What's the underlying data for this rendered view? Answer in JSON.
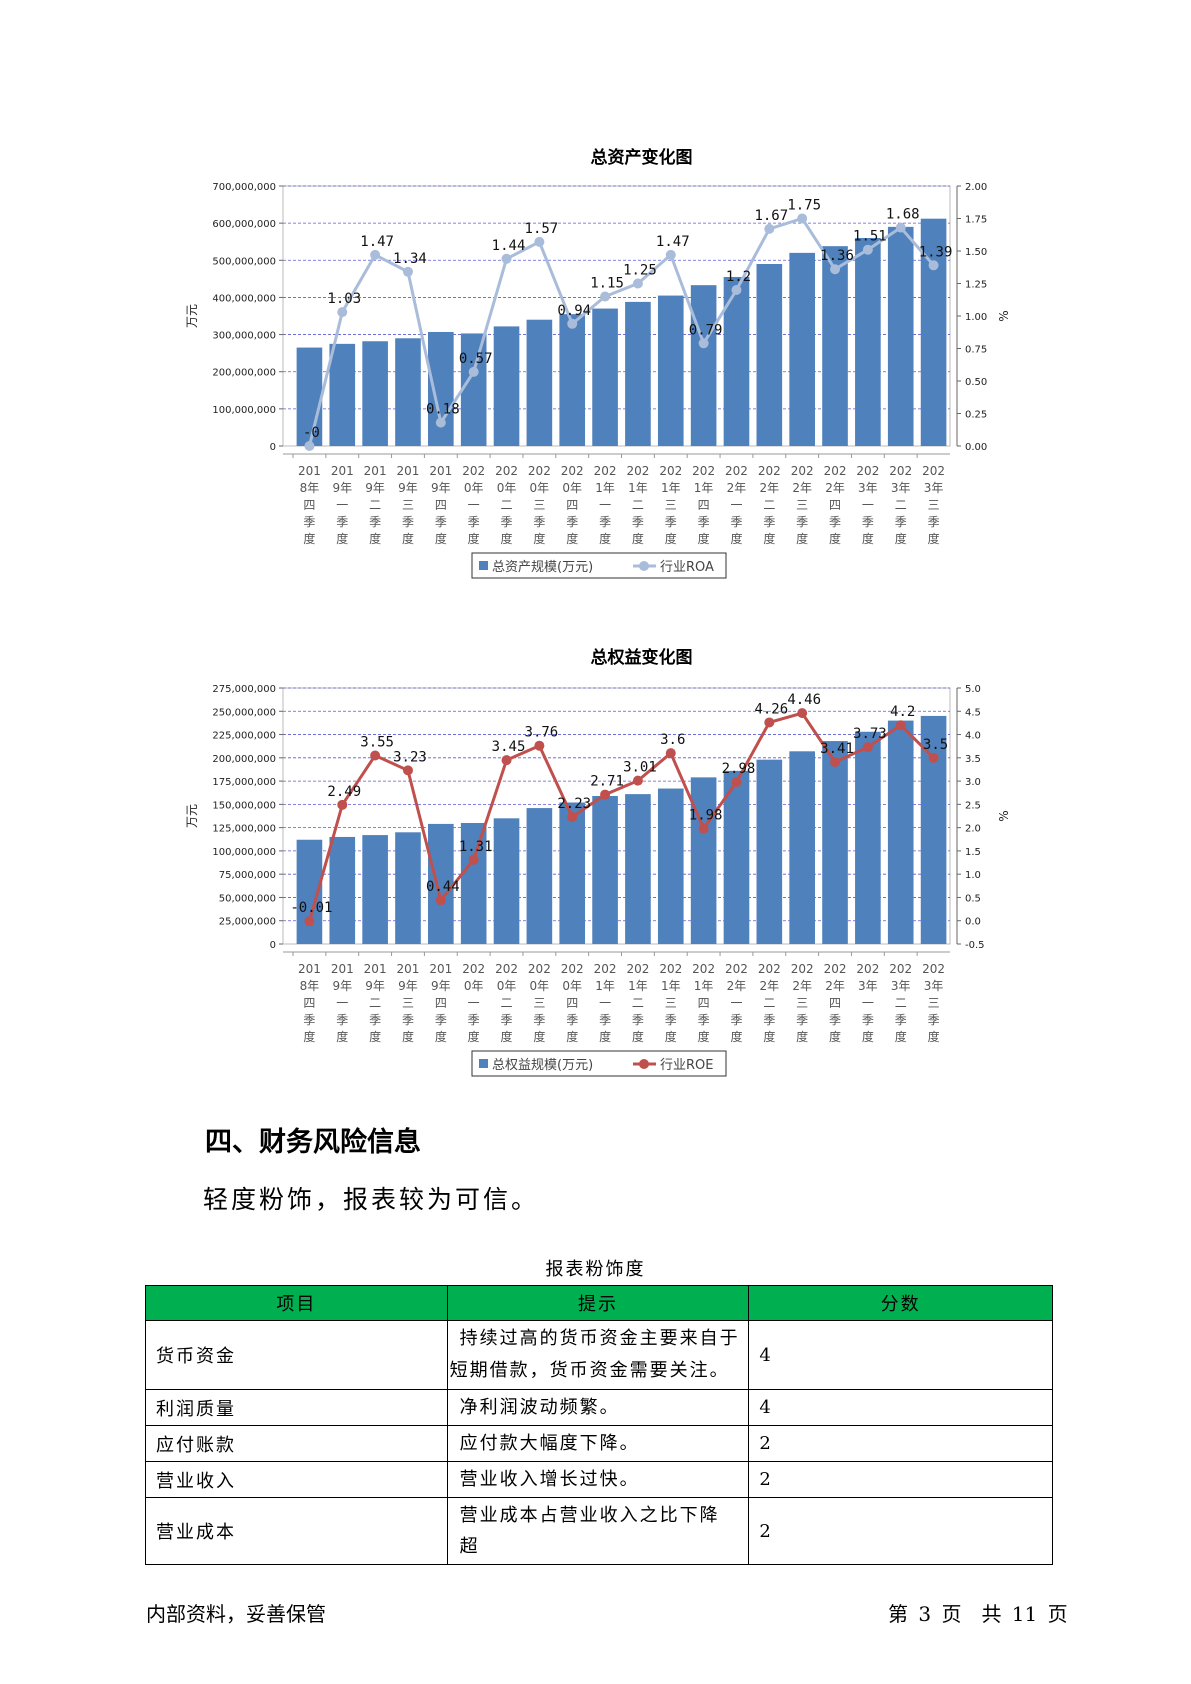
{
  "chart_data": [
    {
      "type": "bar",
      "title": "总资产变化图",
      "ylabel": "万元",
      "y2label": "%",
      "categories": [
        "2018年四季度",
        "2019年一季度",
        "2019年二季度",
        "2019年三季度",
        "2019年四季度",
        "2020年一季度",
        "2020年二季度",
        "2020年三季度",
        "2020年四季度",
        "2021年一季度",
        "2021年二季度",
        "2021年三季度",
        "2021年四季度",
        "2022年一季度",
        "2022年二季度",
        "2022年三季度",
        "2022年四季度",
        "2023年一季度",
        "2023年二季度",
        "2023年三季度"
      ],
      "ylim": [
        0,
        700000000
      ],
      "y_ticks": [
        "700,000,000",
        "600,000,000",
        "500,000,000",
        "400,000,000",
        "300,000,000",
        "200,000,000",
        "100,000,000",
        "0"
      ],
      "y2lim": [
        0,
        2.0
      ],
      "y2_ticks": [
        "2.00",
        "1.75",
        "1.50",
        "1.25",
        "1.00",
        "0.75",
        "0.50",
        "0.25",
        "0.00"
      ],
      "series": [
        {
          "name": "总资产规模(万元)",
          "type": "bar",
          "color": "#4f81bd",
          "values": [
            265000000,
            275000000,
            282000000,
            290000000,
            307000000,
            303000000,
            322000000,
            340000000,
            355000000,
            370000000,
            388000000,
            405000000,
            433000000,
            455000000,
            490000000,
            520000000,
            538000000,
            560000000,
            590000000,
            612000000
          ]
        },
        {
          "name": "行业ROA",
          "type": "line",
          "color": "#a9bcda",
          "values": [
            0,
            1.03,
            1.47,
            1.34,
            0.18,
            0.57,
            1.44,
            1.57,
            0.94,
            1.15,
            1.25,
            1.47,
            0.79,
            1.2,
            1.67,
            1.75,
            1.36,
            1.51,
            1.68,
            1.39
          ],
          "labels": [
            "-0",
            "1.03",
            "1.47",
            "1.34",
            "0.18",
            "0.57",
            "1.44",
            "1.57",
            "0.94",
            "1.15",
            "1.25",
            "1.47",
            "0.79",
            "1.2",
            "1.67",
            "1.75",
            "1.36",
            "1.51",
            "1.68",
            "1.39"
          ]
        }
      ],
      "legend_position": "bottom"
    },
    {
      "type": "bar",
      "title": "总权益变化图",
      "ylabel": "万元",
      "y2label": "%",
      "categories": [
        "2018年四季度",
        "2019年一季度",
        "2019年二季度",
        "2019年三季度",
        "2019年四季度",
        "2020年一季度",
        "2020年二季度",
        "2020年三季度",
        "2020年四季度",
        "2021年一季度",
        "2021年二季度",
        "2021年三季度",
        "2021年四季度",
        "2022年一季度",
        "2022年二季度",
        "2022年三季度",
        "2022年四季度",
        "2023年一季度",
        "2023年二季度",
        "2023年三季度"
      ],
      "ylim": [
        0,
        275000000
      ],
      "y_ticks": [
        "275,000,000",
        "250,000,000",
        "225,000,000",
        "200,000,000",
        "175,000,000",
        "150,000,000",
        "125,000,000",
        "100,000,000",
        "75,000,000",
        "50,000,000",
        "25,000,000",
        "0"
      ],
      "y2lim": [
        -0.5,
        5.0
      ],
      "y2_ticks": [
        "5.0",
        "4.5",
        "4.0",
        "3.5",
        "3.0",
        "2.5",
        "2.0",
        "1.5",
        "1.0",
        "0.5",
        "0.0",
        "-0.5"
      ],
      "series": [
        {
          "name": "总权益规模(万元)",
          "type": "bar",
          "color": "#4f81bd",
          "values": [
            112000000,
            115000000,
            117000000,
            120000000,
            129000000,
            130000000,
            135000000,
            146000000,
            152000000,
            159000000,
            161000000,
            167000000,
            179000000,
            186000000,
            198000000,
            207000000,
            218000000,
            228000000,
            240000000,
            245000000
          ]
        },
        {
          "name": "行业ROE",
          "type": "line",
          "color": "#c0504d",
          "values": [
            -0.01,
            2.49,
            3.55,
            3.23,
            0.44,
            1.31,
            3.45,
            3.76,
            2.23,
            2.71,
            3.01,
            3.6,
            1.98,
            2.98,
            4.26,
            4.46,
            3.41,
            3.73,
            4.2,
            3.5
          ],
          "labels": [
            "-0.01",
            "2.49",
            "3.55",
            "3.23",
            "0.44",
            "1.31",
            "3.45",
            "3.76",
            "2.23",
            "2.71",
            "3.01",
            "3.6",
            "1.98",
            "2.98",
            "4.26",
            "4.46",
            "3.41",
            "3.73",
            "4.2",
            "3.5"
          ]
        }
      ],
      "legend_position": "bottom"
    }
  ],
  "section": {
    "heading": "四、财务风险信息",
    "text": "轻度粉饰，报表较为可信。"
  },
  "table": {
    "caption": "报表粉饰度",
    "header_color": "#00b050",
    "headers": [
      "项目",
      "提示",
      "分数"
    ],
    "rows": [
      {
        "item": "货币资金",
        "tip": "持续过高的货币资金主要来自于短期借款，货币资金需要关注。",
        "score": "4"
      },
      {
        "item": "利润质量",
        "tip": "净利润波动频繁。",
        "score": "4"
      },
      {
        "item": "应付账款",
        "tip": "应付款大幅度下降。",
        "score": "2"
      },
      {
        "item": "营业收入",
        "tip": "营业收入增长过快。",
        "score": "2"
      },
      {
        "item": "营业成本",
        "tip": "营业成本占营业收入之比下降超",
        "score": "2"
      }
    ]
  },
  "footer": {
    "left": "内部资料，妥善保管",
    "right": "第 3 页　共 11 页"
  }
}
